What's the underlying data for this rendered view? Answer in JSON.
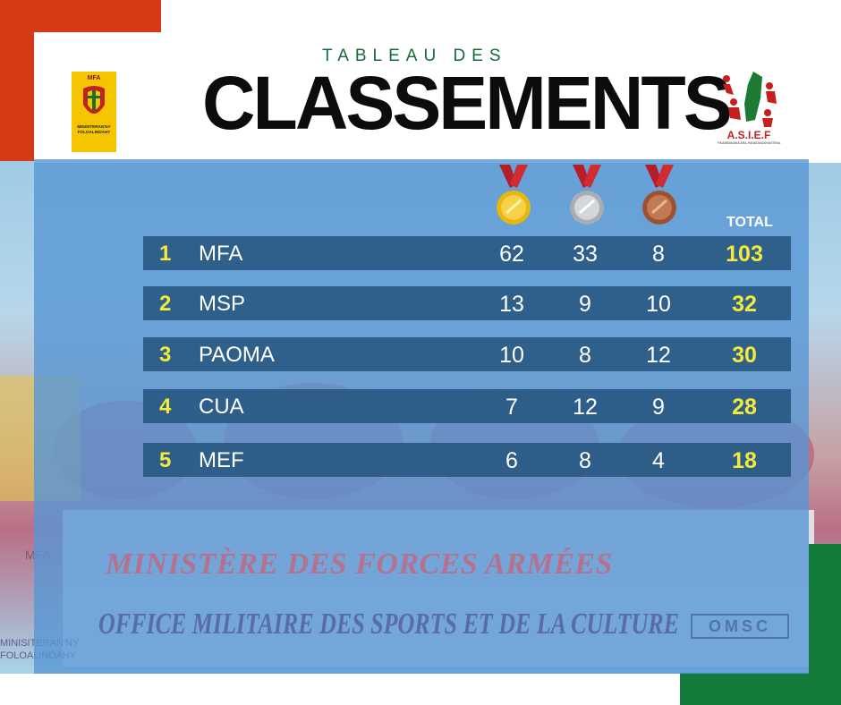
{
  "header": {
    "subtitle": "TABLEAU DES",
    "title": "CLASSEMENTS"
  },
  "logos": {
    "left": {
      "top_label": "MFA",
      "bottom_label_1": "MINISITERAN'NY",
      "bottom_label_2": "FOLOALINDAHY"
    },
    "right": {
      "label": "A.S.I.E.F",
      "sub": "FIKAMBANANA ARA-PANATANJAHANTENA"
    }
  },
  "table": {
    "total_header": "TOTAL",
    "medal_icons": [
      "gold-medal-icon",
      "silver-medal-icon",
      "bronze-medal-icon"
    ],
    "rows": [
      {
        "rank": "1",
        "team": "MFA",
        "gold": "62",
        "silver": "33",
        "bronze": "8",
        "total": "103"
      },
      {
        "rank": "2",
        "team": "MSP",
        "gold": "13",
        "silver": "9",
        "bronze": "10",
        "total": "32"
      },
      {
        "rank": "3",
        "team": "PAOMA",
        "gold": "10",
        "silver": "8",
        "bronze": "12",
        "total": "30"
      },
      {
        "rank": "4",
        "team": "CUA",
        "gold": "7",
        "silver": "12",
        "bronze": "9",
        "total": "28"
      },
      {
        "rank": "5",
        "team": "MEF",
        "gold": "6",
        "silver": "8",
        "bronze": "4",
        "total": "18"
      }
    ]
  },
  "background_banner": {
    "line1": "MINISTÈRE DES FORCES ARMÉES",
    "line2": "OFFICE MILITAIRE DES SPORTS ET DE LA CULTURE",
    "omsc": "OMSC",
    "left_mfa": "MFA",
    "left_sub_1": "MINISITERAN'NY",
    "left_sub_2": "FOLOALINDAHY"
  },
  "colors": {
    "accent_red": "#d63a14",
    "accent_green": "#127a3a",
    "rank_yellow": "#f4ea3c",
    "row_blue": "#265680"
  }
}
